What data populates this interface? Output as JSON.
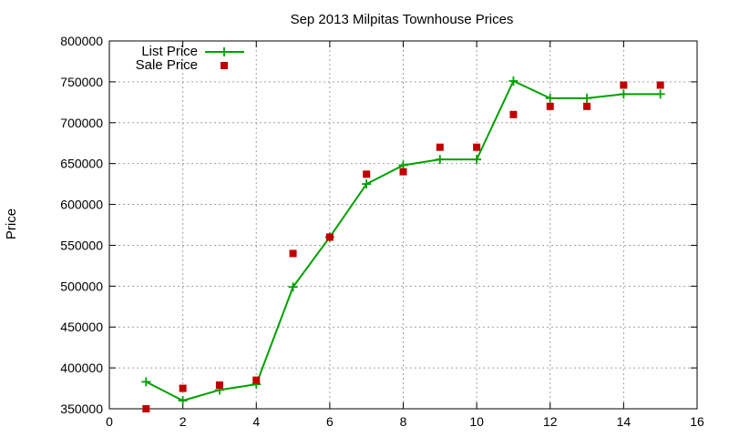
{
  "chart_data": {
    "type": "line",
    "title": "Sep 2013 Milpitas Townhouse Prices",
    "xlabel": "",
    "ylabel": "Price",
    "xlim": [
      0,
      16
    ],
    "ylim": [
      350000,
      800000
    ],
    "xticks": [
      0,
      2,
      4,
      6,
      8,
      10,
      12,
      14,
      16
    ],
    "yticks": [
      350000,
      400000,
      450000,
      500000,
      550000,
      600000,
      650000,
      700000,
      750000,
      800000
    ],
    "grid": true,
    "legend_position": "top-left",
    "series": [
      {
        "name": "List Price",
        "style": "line-points",
        "color": "#00a000",
        "x": [
          1,
          2,
          3,
          4,
          5,
          6,
          7,
          8,
          9,
          10,
          11,
          12,
          13,
          14,
          15
        ],
        "values": [
          383000,
          360000,
          373000,
          380000,
          499000,
          560000,
          625000,
          648000,
          655000,
          655000,
          751000,
          730000,
          730000,
          735000,
          735000
        ]
      },
      {
        "name": "Sale Price",
        "style": "points",
        "color": "#c00000",
        "x": [
          1,
          2,
          3,
          4,
          5,
          6,
          7,
          8,
          9,
          10,
          11,
          12,
          13,
          14,
          15
        ],
        "values": [
          350000,
          375000,
          379000,
          385000,
          540000,
          560000,
          637000,
          640000,
          670000,
          670000,
          710000,
          720000,
          720000,
          746000,
          746000
        ]
      }
    ]
  }
}
